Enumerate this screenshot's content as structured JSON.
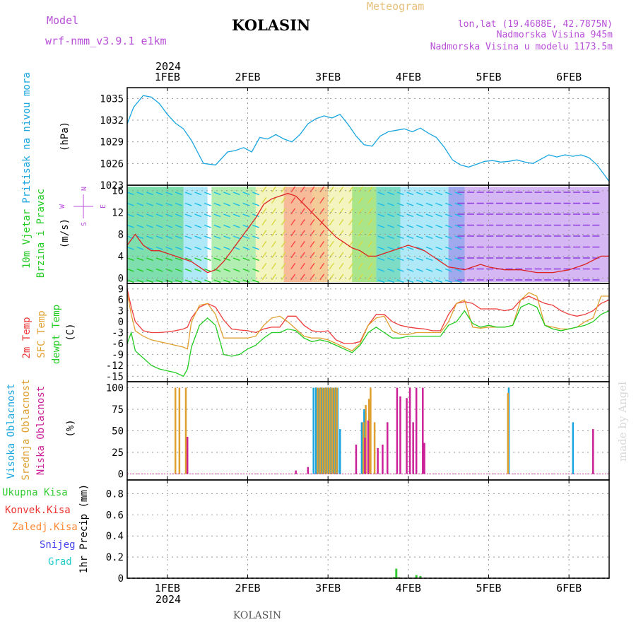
{
  "header": {
    "model_label": "Model",
    "model_name": "wrf-nmm_v3.9.1 e1km",
    "title": "KOLASIN",
    "meteogram_label": "Meteogram",
    "coords": "lon,lat (19.4688E, 42.7875N)",
    "elevation": "Nadmorska Visina 945m",
    "model_elevation": "Nadmorska Visina u modelu 1173.5m",
    "year_label": "2024",
    "footer_title": "KOLASIN",
    "watermark": "made by Angel"
  },
  "colors": {
    "pressure": "#1aa6e0",
    "temp2m": "#ee3b3b",
    "sfc_temp": "#e0a030",
    "dewpt": "#22cc22",
    "high_cloud": "#1aa6e0",
    "mid_cloud": "#e0a030",
    "low_cloud": "#cc2299",
    "total_precip": "#33cc33",
    "conv_precip": "#ee3333",
    "frozen_precip": "#ff8833",
    "snow": "#4444ee",
    "hail": "#22cccc",
    "wind_speed_line": "#dd2222",
    "wind_label": "#22cc22",
    "compass": "#b84fd8"
  },
  "time_axis": {
    "day_labels": [
      "1FEB",
      "2FEB",
      "3FEB",
      "4FEB",
      "5FEB",
      "6FEB"
    ],
    "start_day_offset": -0.5,
    "end_day_offset": 5.5
  },
  "panels": {
    "pressure": {
      "ylabel": "Pritisak na nivou mora",
      "unit": "(hPa)"
    },
    "wind": {
      "ylabel_1": "10m Vjetar",
      "ylabel_2": "Brzina i Pravac",
      "unit": "(m/s)",
      "compass_n": "N",
      "compass_s": "S",
      "compass_w": "W",
      "compass_e": "E"
    },
    "temperature": {
      "ylabel_1": "2m Temp",
      "ylabel_2": "SFC Temp",
      "ylabel_3": "dewpt Temp",
      "unit": "(C)"
    },
    "cloud": {
      "ylabel_1": "Visoka Oblacnost",
      "ylabel_2": "Srednja Oblacnost",
      "ylabel_3": "Niska Oblacnost",
      "unit": "(%)"
    },
    "precip": {
      "legend": [
        "Ukupna Kisa",
        "Konvek.Kisa",
        "Zaledj.Kisa",
        "Snijeg",
        "Grad"
      ],
      "ylabel": "1hr Precip (mm)"
    }
  },
  "chart_data": [
    {
      "type": "line",
      "title": "Pritisak na nivou mora",
      "unit": "hPa",
      "yticks": [
        1023,
        1026,
        1029,
        1032,
        1035
      ],
      "ylim": [
        1023,
        1036.5
      ],
      "grid": true,
      "series": [
        {
          "name": "Pritisak na nivou mora",
          "color_key": "pressure",
          "x": [
            -0.5,
            -0.42,
            -0.3,
            -0.2,
            -0.1,
            0.0,
            0.1,
            0.2,
            0.3,
            0.45,
            0.6,
            0.75,
            0.85,
            0.95,
            1.05,
            1.15,
            1.25,
            1.35,
            1.45,
            1.55,
            1.65,
            1.75,
            1.85,
            1.95,
            2.05,
            2.15,
            2.25,
            2.35,
            2.45,
            2.55,
            2.65,
            2.75,
            2.85,
            2.95,
            3.05,
            3.15,
            3.25,
            3.35,
            3.45,
            3.55,
            3.65,
            3.75,
            3.85,
            3.95,
            4.05,
            4.15,
            4.25,
            4.35,
            4.45,
            4.55,
            4.65,
            4.75,
            4.85,
            4.95,
            5.05,
            5.15,
            5.25,
            5.35,
            5.45,
            5.5
          ],
          "y": [
            1031.5,
            1033.8,
            1035.4,
            1035.2,
            1034.3,
            1032.8,
            1031.6,
            1030.8,
            1029.2,
            1026.0,
            1025.8,
            1027.6,
            1027.8,
            1028.2,
            1027.6,
            1029.6,
            1029.4,
            1030.0,
            1029.4,
            1029.0,
            1030.0,
            1031.5,
            1032.2,
            1032.6,
            1032.3,
            1032.8,
            1031.4,
            1029.8,
            1028.6,
            1028.4,
            1029.8,
            1030.4,
            1030.6,
            1030.8,
            1030.4,
            1030.9,
            1030.2,
            1029.6,
            1028.2,
            1026.5,
            1025.8,
            1025.5,
            1025.9,
            1026.3,
            1026.4,
            1026.2,
            1026.3,
            1026.5,
            1026.2,
            1026.0,
            1026.6,
            1027.2,
            1026.9,
            1027.2,
            1027.0,
            1027.2,
            1026.8,
            1025.8,
            1024.3,
            1023.5
          ]
        }
      ]
    },
    {
      "type": "line",
      "title": "10m Vjetar Brzina i Pravac",
      "unit": "m/s",
      "yticks": [
        0,
        4,
        8,
        12,
        16
      ],
      "ylim": [
        -1,
        17
      ],
      "grid": true,
      "series": [
        {
          "name": "10m Vjetar",
          "color_key": "wind_speed_line",
          "x": [
            -0.5,
            -0.4,
            -0.3,
            -0.2,
            -0.1,
            0.0,
            0.1,
            0.2,
            0.3,
            0.4,
            0.5,
            0.6,
            0.7,
            0.8,
            0.9,
            1.0,
            1.1,
            1.2,
            1.3,
            1.4,
            1.5,
            1.6,
            1.7,
            1.8,
            1.9,
            2.0,
            2.1,
            2.2,
            2.3,
            2.4,
            2.5,
            2.6,
            2.7,
            2.8,
            2.9,
            3.0,
            3.1,
            3.2,
            3.3,
            3.4,
            3.5,
            3.6,
            3.7,
            3.8,
            3.9,
            4.0,
            4.2,
            4.4,
            4.6,
            4.8,
            5.0,
            5.2,
            5.4,
            5.5
          ],
          "y": [
            6.0,
            8.0,
            6.0,
            5.0,
            5.0,
            4.5,
            4.0,
            3.5,
            3.0,
            2.0,
            1.0,
            1.5,
            3.0,
            5.0,
            7.0,
            9.0,
            11.0,
            13.5,
            14.5,
            15.0,
            15.5,
            15.0,
            13.5,
            12.0,
            10.5,
            9.0,
            7.5,
            6.5,
            5.5,
            5.0,
            4.0,
            4.0,
            4.5,
            5.0,
            5.5,
            6.0,
            5.5,
            5.0,
            4.0,
            3.0,
            2.0,
            1.8,
            1.5,
            2.0,
            2.5,
            2.0,
            1.5,
            1.5,
            1.0,
            1.0,
            1.5,
            2.5,
            4.0,
            4.0
          ]
        }
      ]
    },
    {
      "type": "line",
      "title": "2m Temp / SFC Temp / dewpt Temp",
      "unit": "C",
      "yticks": [
        -15,
        -12,
        -9,
        -6,
        -3,
        0,
        3,
        6,
        9
      ],
      "ylim": [
        -16.5,
        10.5
      ],
      "grid": true,
      "series": [
        {
          "name": "2m Temp",
          "color_key": "temp2m",
          "x": [
            -0.5,
            -0.45,
            -0.4,
            -0.3,
            -0.2,
            -0.1,
            0.0,
            0.1,
            0.2,
            0.25,
            0.3,
            0.4,
            0.5,
            0.6,
            0.7,
            0.8,
            0.9,
            1.0,
            1.1,
            1.2,
            1.3,
            1.4,
            1.5,
            1.6,
            1.7,
            1.8,
            1.9,
            2.0,
            2.1,
            2.2,
            2.3,
            2.4,
            2.5,
            2.6,
            2.7,
            2.8,
            2.9,
            3.0,
            3.1,
            3.2,
            3.3,
            3.4,
            3.5,
            3.6,
            3.7,
            3.8,
            3.9,
            4.0,
            4.1,
            4.2,
            4.3,
            4.4,
            4.5,
            4.6,
            4.7,
            4.8,
            4.9,
            5.0,
            5.1,
            5.2,
            5.3,
            5.4,
            5.5
          ],
          "y": [
            9.0,
            4.0,
            0.0,
            -2.5,
            -3.0,
            -3.0,
            -2.8,
            -2.5,
            -2.0,
            -1.5,
            1.0,
            4.0,
            5.0,
            4.0,
            0.5,
            -2.0,
            -2.3,
            -2.5,
            -3.0,
            -2.0,
            -1.5,
            -1.5,
            1.5,
            1.5,
            -1.0,
            -2.5,
            -2.8,
            -2.5,
            -5.0,
            -6.0,
            -6.0,
            -5.5,
            -1.0,
            2.0,
            2.0,
            0.0,
            -1.0,
            -1.5,
            -1.8,
            -2.0,
            -2.5,
            -2.5,
            2.0,
            5.0,
            5.5,
            5.0,
            3.5,
            3.5,
            3.5,
            3.0,
            3.5,
            6.0,
            7.0,
            6.0,
            5.0,
            4.5,
            3.0,
            2.0,
            1.5,
            2.0,
            3.0,
            5.0,
            6.0
          ]
        },
        {
          "name": "SFC Temp",
          "color_key": "sfc_temp",
          "x": [
            -0.5,
            -0.45,
            -0.4,
            -0.3,
            -0.2,
            -0.1,
            0.0,
            0.1,
            0.2,
            0.25,
            0.3,
            0.4,
            0.5,
            0.6,
            0.7,
            0.8,
            0.9,
            1.0,
            1.1,
            1.2,
            1.3,
            1.4,
            1.5,
            1.6,
            1.7,
            1.8,
            1.9,
            2.0,
            2.1,
            2.2,
            2.3,
            2.4,
            2.5,
            2.6,
            2.7,
            2.8,
            2.9,
            3.0,
            3.1,
            3.2,
            3.3,
            3.4,
            3.5,
            3.6,
            3.7,
            3.8,
            3.9,
            4.0,
            4.1,
            4.2,
            4.3,
            4.4,
            4.5,
            4.6,
            4.7,
            4.8,
            4.9,
            5.0,
            5.1,
            5.2,
            5.3,
            5.4,
            5.5
          ],
          "y": [
            8.0,
            2.0,
            -2.5,
            -4.0,
            -5.0,
            -5.5,
            -6.0,
            -6.5,
            -7.0,
            -7.5,
            0.0,
            4.5,
            5.0,
            2.0,
            -4.5,
            -4.5,
            -4.5,
            -4.5,
            -4.0,
            -1.0,
            1.0,
            1.5,
            0.0,
            -2.0,
            -4.0,
            -4.5,
            -4.5,
            -5.0,
            -6.0,
            -7.0,
            -8.0,
            -6.0,
            -1.0,
            1.0,
            1.5,
            -2.5,
            -3.5,
            -3.5,
            -3.0,
            -3.0,
            -3.0,
            -3.0,
            0.0,
            5.0,
            6.0,
            -1.5,
            -1.8,
            -1.5,
            -1.5,
            -1.5,
            -1.0,
            6.0,
            8.0,
            7.0,
            -1.0,
            -1.5,
            -2.0,
            -2.0,
            -1.5,
            0.0,
            1.0,
            7.0,
            7.0
          ]
        },
        {
          "name": "dewpt Temp",
          "color_key": "dewpt",
          "x": [
            -0.5,
            -0.45,
            -0.4,
            -0.3,
            -0.2,
            -0.1,
            0.0,
            0.1,
            0.2,
            0.25,
            0.3,
            0.4,
            0.5,
            0.6,
            0.7,
            0.8,
            0.9,
            1.0,
            1.1,
            1.2,
            1.3,
            1.4,
            1.5,
            1.6,
            1.7,
            1.8,
            1.9,
            2.0,
            2.1,
            2.2,
            2.3,
            2.4,
            2.5,
            2.6,
            2.7,
            2.8,
            2.9,
            3.0,
            3.1,
            3.2,
            3.3,
            3.4,
            3.5,
            3.6,
            3.7,
            3.8,
            3.9,
            4.0,
            4.1,
            4.2,
            4.3,
            4.4,
            4.5,
            4.6,
            4.7,
            4.8,
            4.9,
            5.0,
            5.1,
            5.2,
            5.3,
            5.4,
            5.5
          ],
          "y": [
            -6.0,
            -3.0,
            -8.0,
            -10.0,
            -12.0,
            -13.0,
            -13.5,
            -14.0,
            -15.0,
            -13.0,
            -7.0,
            -1.0,
            1.0,
            -1.0,
            -9.0,
            -9.5,
            -9.0,
            -7.5,
            -6.5,
            -4.5,
            -3.0,
            -3.0,
            -2.0,
            -2.5,
            -4.5,
            -5.5,
            -5.0,
            -5.5,
            -6.5,
            -7.5,
            -8.5,
            -6.5,
            -3.0,
            -1.5,
            -3.0,
            -4.5,
            -4.5,
            -4.0,
            -4.0,
            -4.0,
            -4.0,
            -4.0,
            -1.0,
            0.0,
            3.0,
            -0.5,
            -1.5,
            -1.0,
            -1.5,
            -1.5,
            -1.0,
            4.0,
            5.0,
            4.0,
            -1.0,
            -2.0,
            -2.5,
            -2.0,
            -1.5,
            -1.0,
            0.0,
            2.0,
            3.0
          ]
        }
      ]
    },
    {
      "type": "bar",
      "title": "Visoka / Srednja / Niska Oblacnost",
      "unit": "%",
      "yticks": [
        0,
        25,
        50,
        75,
        100
      ],
      "ylim": [
        -7,
        107
      ],
      "grid": true,
      "series": [
        {
          "name": "Visoka Oblacnost",
          "color_key": "high_cloud",
          "x": [
            1.82,
            1.85,
            1.88,
            1.91,
            1.94,
            1.97,
            2.0,
            2.03,
            2.06,
            2.09,
            2.12,
            2.15,
            2.42,
            2.45,
            4.25,
            5.05
          ],
          "y": [
            100,
            100,
            100,
            100,
            100,
            100,
            100,
            100,
            100,
            100,
            100,
            52,
            60,
            75,
            100,
            60
          ]
        },
        {
          "name": "Srednja Oblacnost",
          "color_key": "mid_cloud",
          "x": [
            0.1,
            0.15,
            0.23,
            1.87,
            1.9,
            1.93,
            1.96,
            1.99,
            2.02,
            2.05,
            2.08,
            2.11,
            2.44,
            2.47,
            2.51,
            2.53,
            2.58,
            4.24
          ],
          "y": [
            100,
            100,
            100,
            100,
            100,
            100,
            100,
            100,
            100,
            100,
            100,
            100,
            60,
            80,
            87,
            100,
            60,
            94
          ]
        },
        {
          "name": "Niska Oblacnost",
          "color_key": "low_cloud",
          "x": [
            0.25,
            1.6,
            1.75,
            2.35,
            2.46,
            2.5,
            2.62,
            2.68,
            2.74,
            2.86,
            2.9,
            2.98,
            3.02,
            3.06,
            3.1,
            3.18,
            3.2,
            5.3
          ],
          "y": [
            43,
            4,
            8,
            34,
            42,
            62,
            30,
            34,
            60,
            100,
            90,
            88,
            100,
            60,
            100,
            100,
            36,
            52
          ]
        }
      ]
    },
    {
      "type": "bar",
      "title": "1hr Precip (mm)",
      "unit": "mm",
      "yticks": [
        0,
        0.2,
        0.4,
        0.6,
        0.8
      ],
      "ylim": [
        0,
        0.93
      ],
      "grid": true,
      "series": [
        {
          "name": "Ukupna Kisa",
          "color_key": "total_precip",
          "x": [
            2.82,
            2.85,
            2.88,
            3.1,
            3.15
          ],
          "y": [
            0.01,
            0.09,
            0.01,
            0.03,
            0.02
          ]
        }
      ]
    }
  ]
}
